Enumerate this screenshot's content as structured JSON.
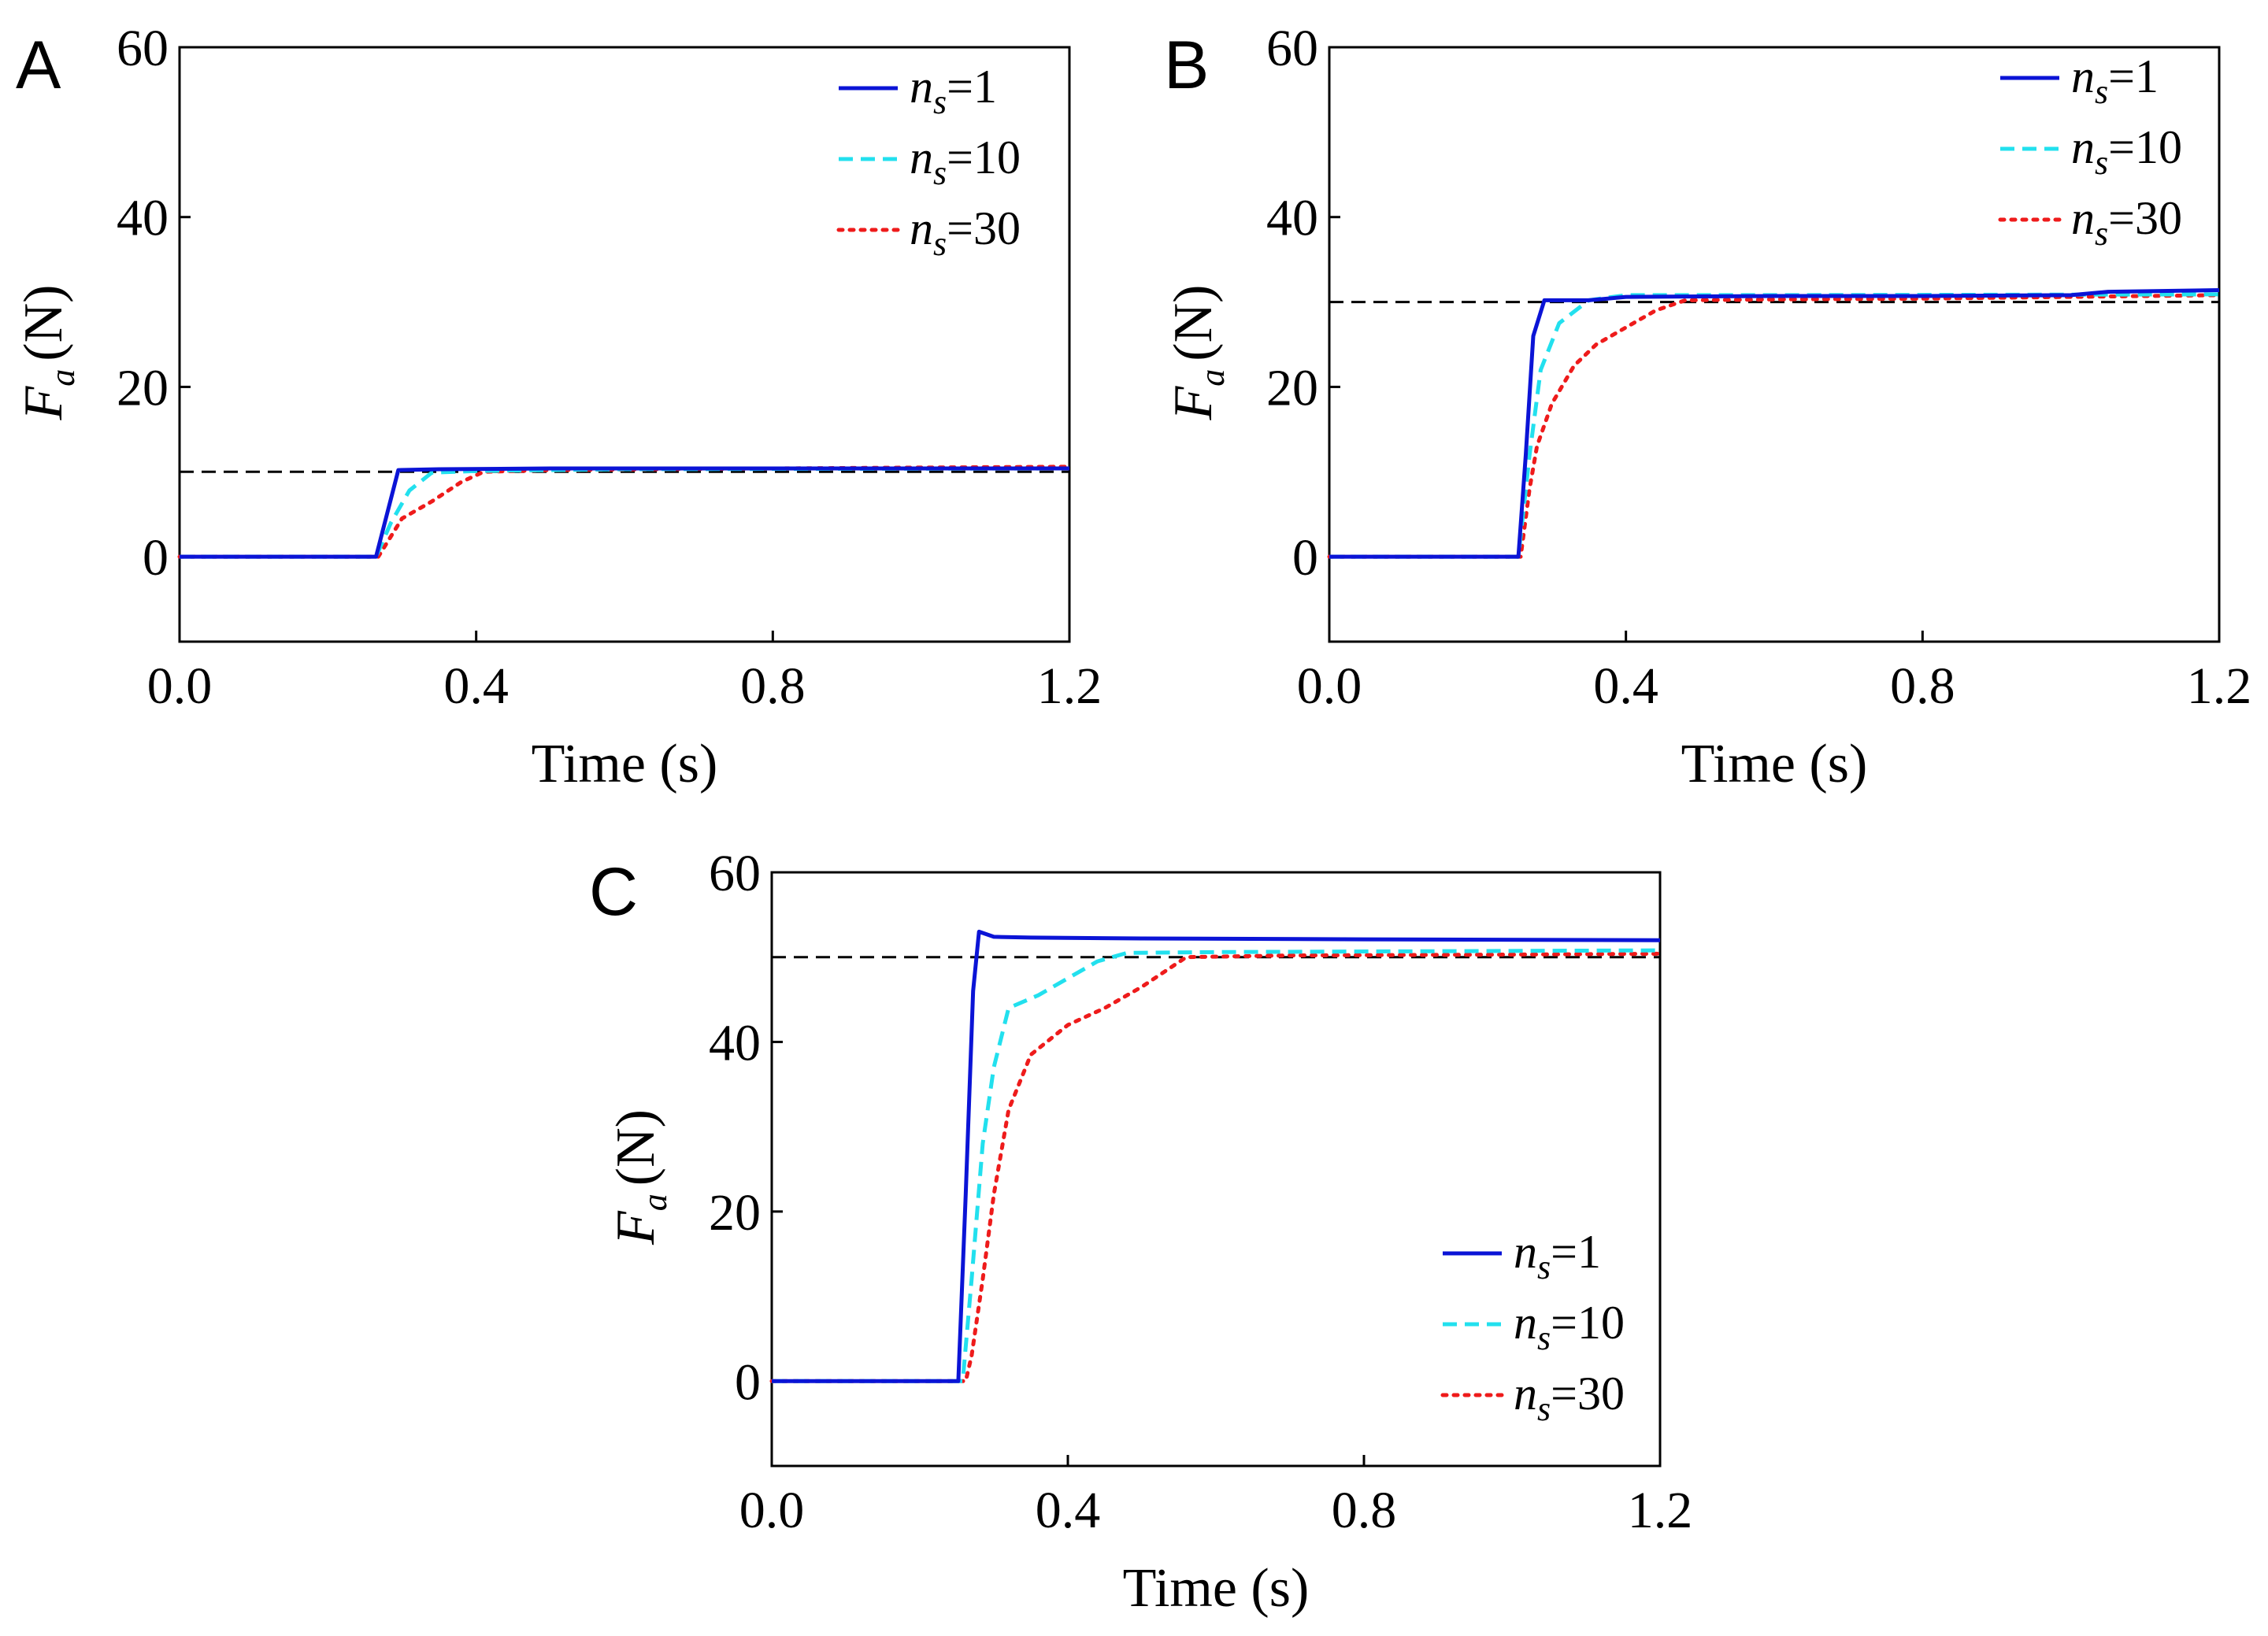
{
  "chart_data": [
    {
      "type": "line",
      "panel": "A",
      "xlabel": "Time (s)",
      "ylabel": {
        "main": "F",
        "sub": "a",
        "unit": "(N)"
      },
      "xlim": [
        0.0,
        1.2
      ],
      "ylim": [
        -10,
        60
      ],
      "xticks": [
        0.0,
        0.4,
        0.8,
        1.2
      ],
      "xtick_labels": [
        "0.0",
        "0.4",
        "0.8",
        "1.2"
      ],
      "yticks": [
        0,
        20,
        40,
        60
      ],
      "ytick_labels": [
        "0",
        "20",
        "40",
        "60"
      ],
      "legend_position": "top-right",
      "reference": {
        "y": 10,
        "color": "#000000",
        "style": "dashed"
      },
      "series": [
        {
          "name": "n_s=1",
          "label_main": "n",
          "label_sub": "s",
          "label_rest": "=1",
          "color": "#0b14d6",
          "style": "solid",
          "x": [
            0.0,
            0.265,
            0.295,
            0.35,
            0.5,
            0.8,
            1.0,
            1.2
          ],
          "y": [
            0,
            0,
            10.2,
            10.3,
            10.4,
            10.4,
            10.4,
            10.4
          ]
        },
        {
          "name": "n_s=10",
          "label_main": "n",
          "label_sub": "s",
          "label_rest": "=10",
          "color": "#22e0ee",
          "style": "dashed",
          "x": [
            0.0,
            0.265,
            0.285,
            0.31,
            0.34,
            0.4,
            0.6,
            1.2
          ],
          "y": [
            0,
            0,
            4.0,
            7.8,
            9.9,
            10.1,
            10.3,
            10.4
          ]
        },
        {
          "name": "n_s=30",
          "label_main": "n",
          "label_sub": "s",
          "label_rest": "=30",
          "color": "#ee1b1b",
          "style": "dotted",
          "x": [
            0.0,
            0.268,
            0.3,
            0.34,
            0.38,
            0.41,
            0.5,
            0.8,
            1.2
          ],
          "y": [
            0,
            0,
            4.5,
            6.5,
            8.8,
            10.0,
            10.2,
            10.4,
            10.6
          ]
        }
      ]
    },
    {
      "type": "line",
      "panel": "B",
      "xlabel": "Time (s)",
      "ylabel": {
        "main": "F",
        "sub": "a",
        "unit": "(N)"
      },
      "xlim": [
        0.0,
        1.2
      ],
      "ylim": [
        -10,
        60
      ],
      "xticks": [
        0.0,
        0.4,
        0.8,
        1.2
      ],
      "xtick_labels": [
        "0.0",
        "0.4",
        "0.8",
        "1.2"
      ],
      "yticks": [
        0,
        20,
        40,
        60
      ],
      "ytick_labels": [
        "0",
        "20",
        "40",
        "60"
      ],
      "legend_position": "top-right",
      "reference": {
        "y": 30,
        "color": "#000000",
        "style": "dashed"
      },
      "series": [
        {
          "name": "n_s=1",
          "label_main": "n",
          "label_sub": "s",
          "label_rest": "=1",
          "color": "#0b14d6",
          "style": "solid",
          "x": [
            0.0,
            0.255,
            0.265,
            0.275,
            0.29,
            0.35,
            0.4,
            0.6,
            0.8,
            1.0,
            1.05,
            1.2
          ],
          "y": [
            0,
            0,
            12,
            26,
            30.2,
            30.2,
            30.6,
            30.7,
            30.7,
            30.8,
            31.2,
            31.4
          ]
        },
        {
          "name": "n_s=10",
          "label_main": "n",
          "label_sub": "s",
          "label_rest": "=10",
          "color": "#22e0ee",
          "style": "dashed",
          "x": [
            0.0,
            0.255,
            0.27,
            0.285,
            0.31,
            0.35,
            0.4,
            0.6,
            1.2
          ],
          "y": [
            0,
            0,
            12,
            22,
            27.5,
            30.2,
            30.8,
            30.8,
            30.9
          ]
        },
        {
          "name": "n_s=30",
          "label_main": "n",
          "label_sub": "s",
          "label_rest": "=30",
          "color": "#ee1b1b",
          "style": "dotted",
          "x": [
            0.0,
            0.258,
            0.27,
            0.28,
            0.3,
            0.33,
            0.36,
            0.4,
            0.44,
            0.48,
            0.6,
            0.8,
            1.0,
            1.2
          ],
          "y": [
            0,
            0,
            8,
            13,
            18,
            22.5,
            25,
            27,
            29,
            30.2,
            30.3,
            30.4,
            30.6,
            30.8
          ]
        }
      ]
    },
    {
      "type": "line",
      "panel": "C",
      "xlabel": "Time (s)",
      "ylabel": {
        "main": "F",
        "sub": "a",
        "unit": "(N)"
      },
      "xlim": [
        0.0,
        1.2
      ],
      "ylim": [
        -10,
        60
      ],
      "xticks": [
        0.0,
        0.4,
        0.8,
        1.2
      ],
      "xtick_labels": [
        "0.0",
        "0.4",
        "0.8",
        "1.2"
      ],
      "yticks": [
        0,
        20,
        40,
        60
      ],
      "ytick_labels": [
        "0",
        "20",
        "40",
        "60"
      ],
      "legend_position": "bottom-right",
      "reference": {
        "y": 50,
        "color": "#000000",
        "style": "dashed"
      },
      "series": [
        {
          "name": "n_s=1",
          "label_main": "n",
          "label_sub": "s",
          "label_rest": "=1",
          "color": "#0b14d6",
          "style": "solid",
          "x": [
            0.0,
            0.252,
            0.262,
            0.272,
            0.28,
            0.3,
            0.35,
            0.5,
            0.8,
            1.2
          ],
          "y": [
            0,
            0,
            22,
            46,
            53,
            52.4,
            52.3,
            52.2,
            52.1,
            52.0
          ]
        },
        {
          "name": "n_s=10",
          "label_main": "n",
          "label_sub": "s",
          "label_rest": "=10",
          "color": "#22e0ee",
          "style": "dashed",
          "x": [
            0.0,
            0.258,
            0.27,
            0.285,
            0.3,
            0.32,
            0.36,
            0.4,
            0.44,
            0.48,
            0.6,
            1.2
          ],
          "y": [
            0,
            0,
            12,
            28,
            37,
            44,
            45.5,
            47.5,
            49.5,
            50.5,
            50.6,
            50.8
          ]
        },
        {
          "name": "n_s=30",
          "label_main": "n",
          "label_sub": "s",
          "label_rest": "=30",
          "color": "#ee1b1b",
          "style": "dotted",
          "x": [
            0.0,
            0.262,
            0.27,
            0.285,
            0.3,
            0.32,
            0.35,
            0.4,
            0.45,
            0.5,
            0.56,
            0.7,
            1.0,
            1.2
          ],
          "y": [
            0,
            0,
            3,
            12,
            22,
            32,
            38.5,
            42,
            44,
            46.5,
            50,
            50.2,
            50.3,
            50.4
          ]
        }
      ]
    }
  ]
}
